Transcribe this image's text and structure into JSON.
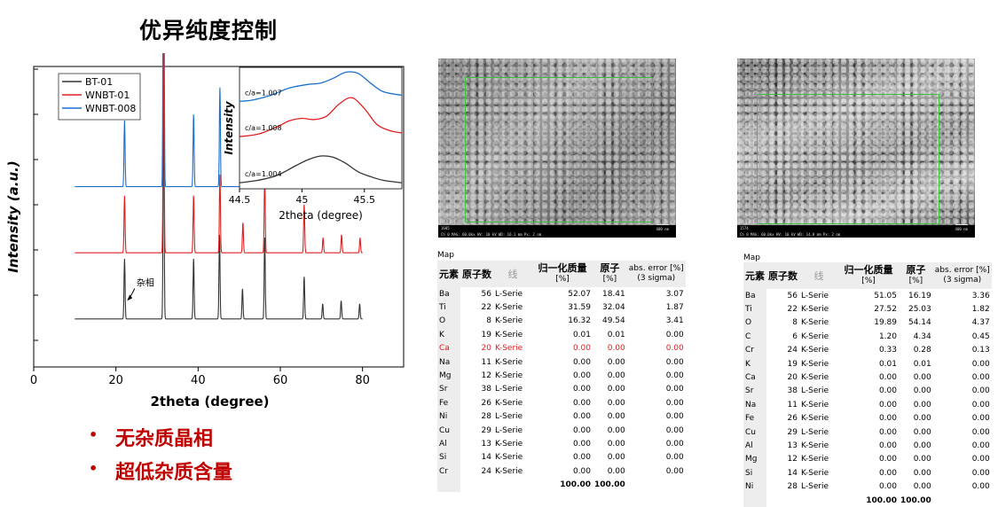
{
  "page": {
    "title": "优异纯度控制"
  },
  "bullets": [
    "无杂质晶相",
    "超低杂质含量"
  ],
  "chart_data": [
    {
      "type": "line",
      "xlabel": "2theta (degree)",
      "ylabel": "Intensity (a.u.)",
      "xlim": [
        0,
        90
      ],
      "xticks": [
        0,
        20,
        40,
        60,
        80
      ],
      "yticks_count": 7,
      "legend_position": "top-left",
      "series": [
        {
          "name": "BT-01",
          "color": "#333333",
          "baseline": 0.16,
          "peaks": [
            [
              22.1,
              0.2
            ],
            [
              31.6,
              0.76
            ],
            [
              38.9,
              0.2
            ],
            [
              45.2,
              0.28
            ],
            [
              50.8,
              0.1
            ],
            [
              56.2,
              0.27
            ],
            [
              65.8,
              0.14
            ],
            [
              70.3,
              0.05
            ],
            [
              74.8,
              0.06
            ],
            [
              79.3,
              0.05
            ]
          ]
        },
        {
          "name": "WNBT-01",
          "color": "#e02020",
          "baseline": 0.38,
          "peaks": [
            [
              22.1,
              0.19
            ],
            [
              31.6,
              0.78
            ],
            [
              38.9,
              0.19
            ],
            [
              45.3,
              0.26
            ],
            [
              50.9,
              0.1
            ],
            [
              56.2,
              0.25
            ],
            [
              65.8,
              0.16
            ],
            [
              70.4,
              0.05
            ],
            [
              74.9,
              0.06
            ],
            [
              79.4,
              0.05
            ]
          ]
        },
        {
          "name": "WNBT-008",
          "color": "#1a6fd0",
          "baseline": 0.6,
          "peaks": [
            [
              22.1,
              0.22
            ],
            [
              31.6,
              1.42
            ],
            [
              38.9,
              0.24
            ],
            [
              45.3,
              0.33
            ],
            [
              50.9,
              0.08
            ],
            [
              56.2,
              0.34
            ],
            [
              65.8,
              0.14
            ],
            [
              70.4,
              0.05
            ],
            [
              74.9,
              0.08
            ],
            [
              79.4,
              0.04
            ]
          ]
        }
      ],
      "annotations": [
        {
          "text": "杂相",
          "x": 25.0,
          "y": 0.27,
          "arrow_to": [
            22.7,
            0.22
          ]
        }
      ]
    },
    {
      "type": "line",
      "inset": true,
      "xlabel": "2theta (degree)",
      "ylabel": "Intensity",
      "xlim": [
        44.5,
        45.8
      ],
      "xticks": [
        44.5,
        45.0,
        45.5
      ],
      "series": [
        {
          "name": "BT-01",
          "label": "c/a=1.004",
          "color": "#333333",
          "points": [
            [
              44.5,
              0.05
            ],
            [
              44.65,
              0.07
            ],
            [
              44.8,
              0.11
            ],
            [
              44.95,
              0.19
            ],
            [
              45.05,
              0.24
            ],
            [
              45.15,
              0.27
            ],
            [
              45.25,
              0.26
            ],
            [
              45.35,
              0.21
            ],
            [
              45.45,
              0.14
            ],
            [
              45.55,
              0.1
            ],
            [
              45.65,
              0.07
            ],
            [
              45.8,
              0.05
            ]
          ]
        },
        {
          "name": "WNBT-01",
          "label": "c/a=1.008",
          "color": "#e02020",
          "points": [
            [
              44.5,
              0.43
            ],
            [
              44.65,
              0.45
            ],
            [
              44.8,
              0.51
            ],
            [
              44.9,
              0.56
            ],
            [
              45.0,
              0.58
            ],
            [
              45.1,
              0.57
            ],
            [
              45.2,
              0.6
            ],
            [
              45.3,
              0.7
            ],
            [
              45.4,
              0.75
            ],
            [
              45.5,
              0.66
            ],
            [
              45.6,
              0.53
            ],
            [
              45.7,
              0.48
            ],
            [
              45.8,
              0.46
            ]
          ]
        },
        {
          "name": "WNBT-008",
          "label": "c/a=1.007",
          "color": "#1a6fd0",
          "points": [
            [
              44.5,
              0.72
            ],
            [
              44.6,
              0.73
            ],
            [
              44.75,
              0.77
            ],
            [
              44.9,
              0.83
            ],
            [
              45.05,
              0.86
            ],
            [
              45.15,
              0.87
            ],
            [
              45.25,
              0.91
            ],
            [
              45.35,
              0.96
            ],
            [
              45.45,
              0.95
            ],
            [
              45.55,
              0.87
            ],
            [
              45.65,
              0.8
            ],
            [
              45.8,
              0.77
            ]
          ]
        }
      ]
    }
  ],
  "sem": [
    {
      "id": "1605",
      "caption": "Ch 0   MAG: 60.0kx   HV: 10 kV   WD: 16.1 mm   Px: 2 nm",
      "scale": "400 nm"
    },
    {
      "id": "1574",
      "caption": "Ch 0   MAG: 60.0kx   HV: 10 kV   WD: 14.8 mm   Px: 2 nm",
      "scale": "400 nm"
    }
  ],
  "tables": [
    {
      "map_label": "Map",
      "headers": {
        "element": "元素",
        "atomic_number": "原子数",
        "line": "线",
        "norm_mass": "归一化质量",
        "norm_mass_unit": "[%]",
        "atom": "原子",
        "atom_unit": "[%]",
        "error": "abs. error [%]",
        "error_unit": "(3 sigma)"
      },
      "rows": [
        {
          "el": "Ba",
          "z": "56",
          "ser": "L-Serie",
          "mass": "52.07",
          "atom": "18.41",
          "err": "3.07"
        },
        {
          "el": "Ti",
          "z": "22",
          "ser": "K-Serie",
          "mass": "31.59",
          "atom": "32.04",
          "err": "1.87"
        },
        {
          "el": "O",
          "z": "8",
          "ser": "K-Serie",
          "mass": "16.32",
          "atom": "49.54",
          "err": "3.41"
        },
        {
          "el": "K",
          "z": "19",
          "ser": "K-Serie",
          "mass": "0.01",
          "atom": "0.01",
          "err": "0.00"
        },
        {
          "el": "Ca",
          "z": "20",
          "ser": "K-Serie",
          "mass": "0.00",
          "atom": "0.00",
          "err": "0.00",
          "highlight": true
        },
        {
          "el": "Na",
          "z": "11",
          "ser": "K-Serie",
          "mass": "0.00",
          "atom": "0.00",
          "err": "0.00"
        },
        {
          "el": "Mg",
          "z": "12",
          "ser": "K-Serie",
          "mass": "0.00",
          "atom": "0.00",
          "err": "0.00"
        },
        {
          "el": "Sr",
          "z": "38",
          "ser": "L-Serie",
          "mass": "0.00",
          "atom": "0.00",
          "err": "0.00"
        },
        {
          "el": "Fe",
          "z": "26",
          "ser": "K-Serie",
          "mass": "0.00",
          "atom": "0.00",
          "err": "0.00"
        },
        {
          "el": "Ni",
          "z": "28",
          "ser": "L-Serie",
          "mass": "0.00",
          "atom": "0.00",
          "err": "0.00"
        },
        {
          "el": "Cu",
          "z": "29",
          "ser": "L-Serie",
          "mass": "0.00",
          "atom": "0.00",
          "err": "0.00"
        },
        {
          "el": "Al",
          "z": "13",
          "ser": "K-Serie",
          "mass": "0.00",
          "atom": "0.00",
          "err": "0.00"
        },
        {
          "el": "Si",
          "z": "14",
          "ser": "K-Serie",
          "mass": "0.00",
          "atom": "0.00",
          "err": "0.00"
        },
        {
          "el": "Cr",
          "z": "24",
          "ser": "K-Serie",
          "mass": "0.00",
          "atom": "0.00",
          "err": "0.00"
        }
      ],
      "total": {
        "mass": "100.00",
        "atom": "100.00"
      }
    },
    {
      "map_label": "Map",
      "headers": {
        "element": "元素",
        "atomic_number": "原子数",
        "line": "线",
        "norm_mass": "归一化质量",
        "norm_mass_unit": "[%]",
        "atom": "原子",
        "atom_unit": "[%]",
        "error": "abs. error [%]",
        "error_unit": "(3 sigma)"
      },
      "rows": [
        {
          "el": "Ba",
          "z": "56",
          "ser": "L-Serie",
          "mass": "51.05",
          "atom": "16.19",
          "err": "3.36"
        },
        {
          "el": "Ti",
          "z": "22",
          "ser": "K-Serie",
          "mass": "27.52",
          "atom": "25.03",
          "err": "1.82"
        },
        {
          "el": "O",
          "z": "8",
          "ser": "K-Serie",
          "mass": "19.89",
          "atom": "54.14",
          "err": "4.37"
        },
        {
          "el": "C",
          "z": "6",
          "ser": "K-Serie",
          "mass": "1.20",
          "atom": "4.34",
          "err": "0.45"
        },
        {
          "el": "Cr",
          "z": "24",
          "ser": "K-Serie",
          "mass": "0.33",
          "atom": "0.28",
          "err": "0.13"
        },
        {
          "el": "K",
          "z": "19",
          "ser": "K-Serie",
          "mass": "0.01",
          "atom": "0.01",
          "err": "0.00"
        },
        {
          "el": "Ca",
          "z": "20",
          "ser": "K-Serie",
          "mass": "0.00",
          "atom": "0.00",
          "err": "0.00"
        },
        {
          "el": "Sr",
          "z": "38",
          "ser": "L-Serie",
          "mass": "0.00",
          "atom": "0.00",
          "err": "0.00"
        },
        {
          "el": "Na",
          "z": "11",
          "ser": "K-Serie",
          "mass": "0.00",
          "atom": "0.00",
          "err": "0.00"
        },
        {
          "el": "Fe",
          "z": "26",
          "ser": "K-Serie",
          "mass": "0.00",
          "atom": "0.00",
          "err": "0.00"
        },
        {
          "el": "Cu",
          "z": "29",
          "ser": "L-Serie",
          "mass": "0.00",
          "atom": "0.00",
          "err": "0.00"
        },
        {
          "el": "Al",
          "z": "13",
          "ser": "K-Serie",
          "mass": "0.00",
          "atom": "0.00",
          "err": "0.00"
        },
        {
          "el": "Mg",
          "z": "12",
          "ser": "K-Serie",
          "mass": "0.00",
          "atom": "0.00",
          "err": "0.00"
        },
        {
          "el": "Si",
          "z": "14",
          "ser": "K-Serie",
          "mass": "0.00",
          "atom": "0.00",
          "err": "0.00"
        },
        {
          "el": "Ni",
          "z": "28",
          "ser": "L-Serie",
          "mass": "0.00",
          "atom": "0.00",
          "err": "0.00"
        }
      ],
      "total": {
        "mass": "100.00",
        "atom": "100.00"
      }
    }
  ]
}
